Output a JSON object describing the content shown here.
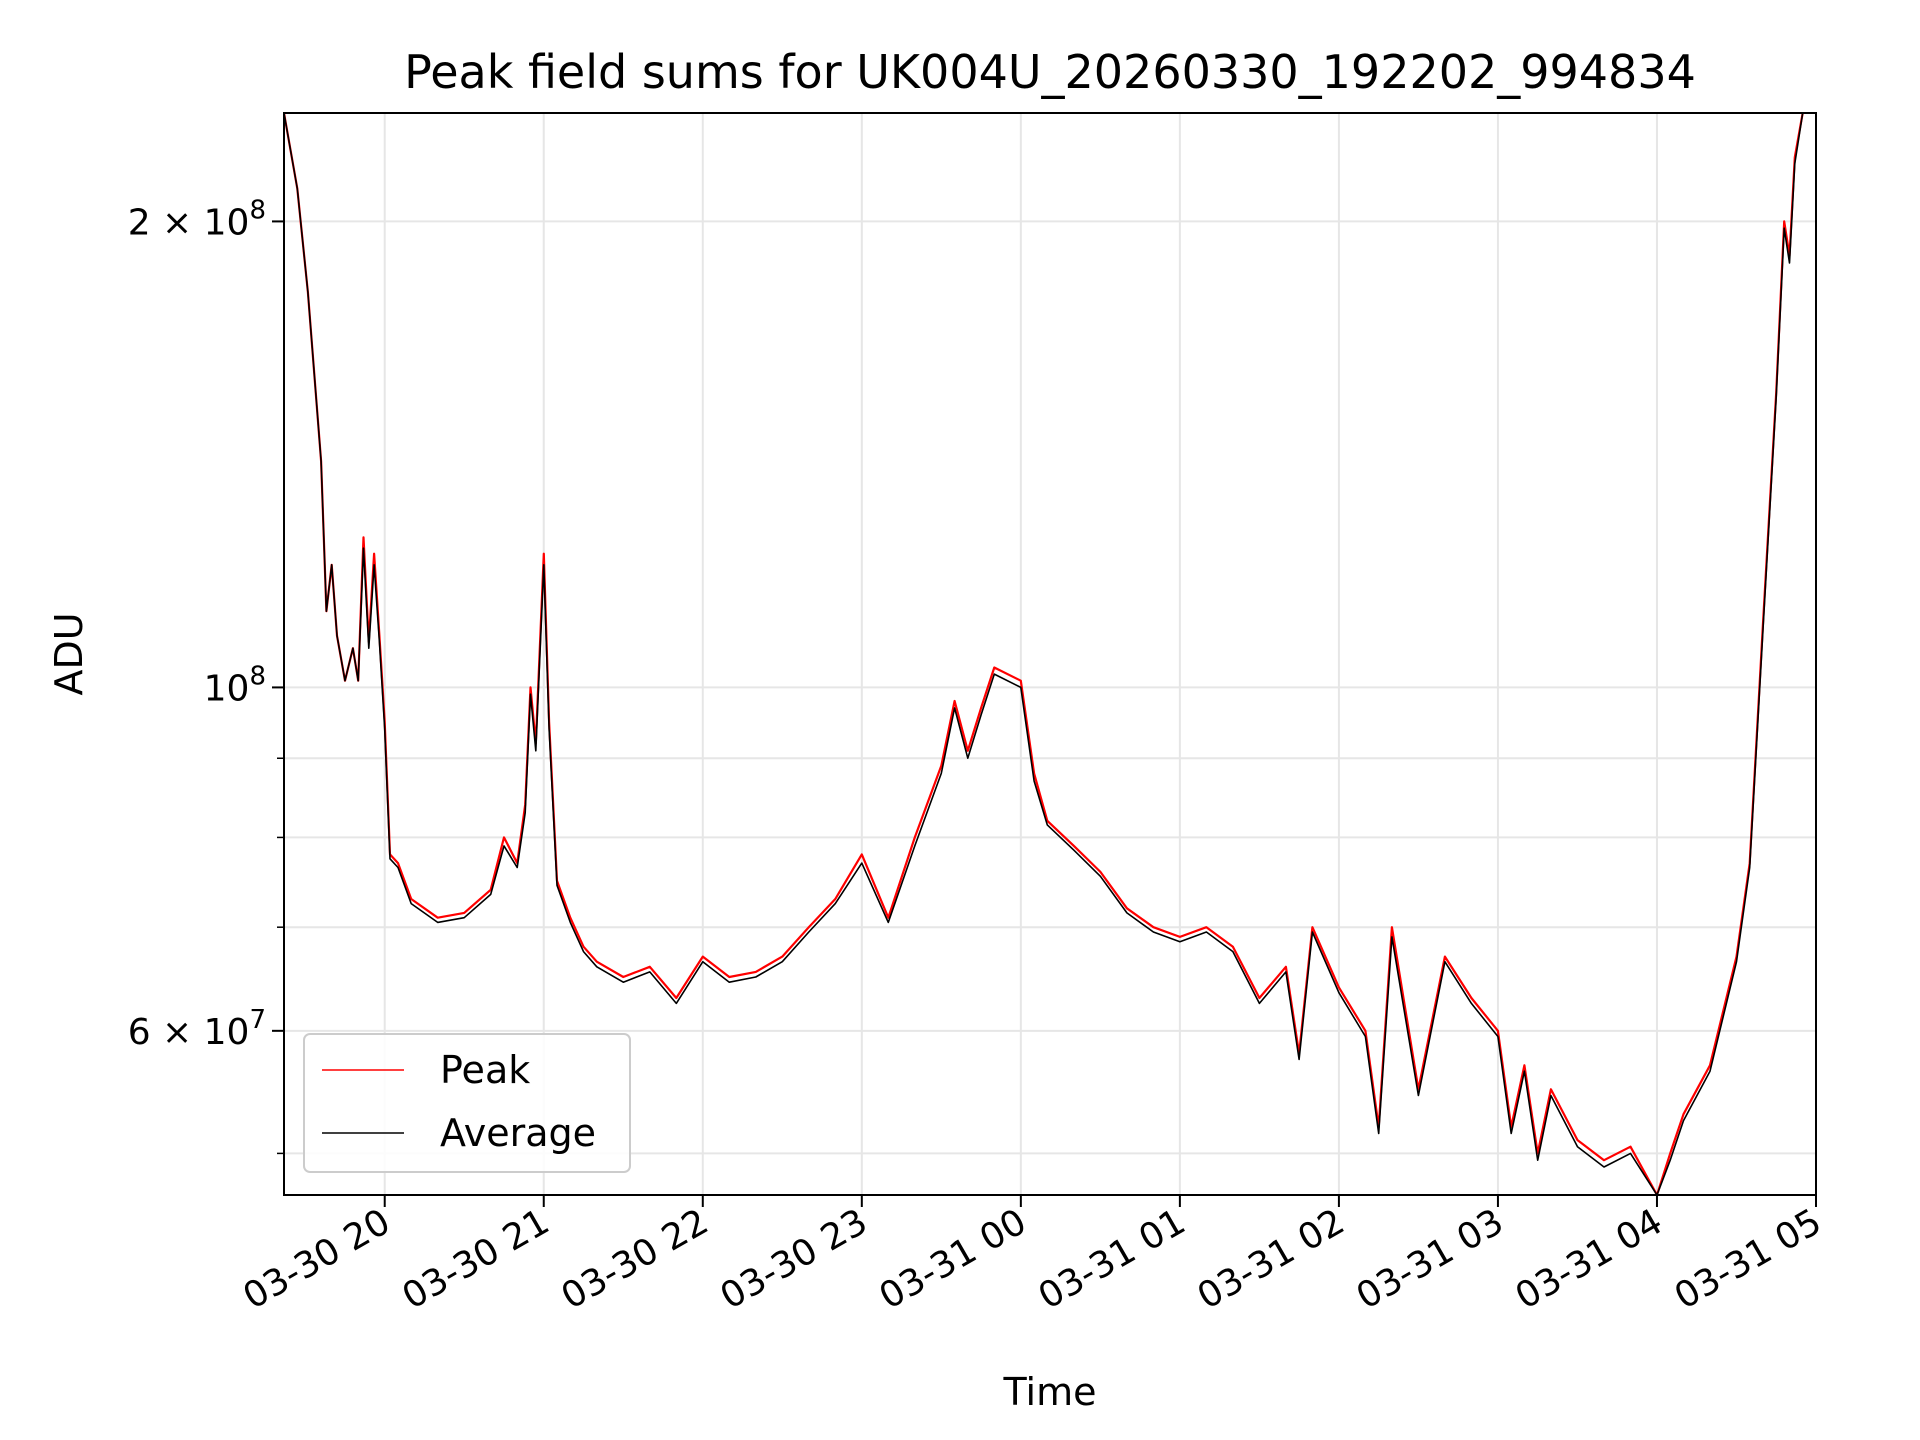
{
  "chart_data": {
    "type": "line",
    "title": "Peak field sums for UK004U_20260330_192202_994834",
    "xlabel": "Time",
    "ylabel": "ADU",
    "y_scale": "log",
    "ylim": [
      47000000,
      235000000
    ],
    "xlim": [
      "03-30 19:22",
      "03-31 05:00"
    ],
    "grid": true,
    "legend_position": "lower-left",
    "x_ticks": [
      "03-30 20",
      "03-30 21",
      "03-30 22",
      "03-30 23",
      "03-31 00",
      "03-31 01",
      "03-31 02",
      "03-31 03",
      "03-31 04",
      "03-31 05"
    ],
    "x_tick_rotation": 30,
    "y_ticks_major": [
      {
        "value": 60000000,
        "mantissa": "6 × 10",
        "exp": "7"
      },
      {
        "value": 100000000,
        "mantissa": "10",
        "exp": "8"
      },
      {
        "value": 200000000,
        "mantissa": "2 × 10",
        "exp": "8"
      }
    ],
    "y_ticks_minor": [
      50000000,
      70000000,
      80000000,
      90000000,
      300000000
    ],
    "series": [
      {
        "name": "Peak",
        "color": "#ff0000",
        "x": [
          "03-30 19:22",
          "03-30 19:27",
          "03-30 19:31",
          "03-30 19:36",
          "03-30 19:38",
          "03-30 19:40",
          "03-30 19:42",
          "03-30 19:45",
          "03-30 19:48",
          "03-30 19:50",
          "03-30 19:52",
          "03-30 19:54",
          "03-30 19:56",
          "03-30 19:58",
          "03-30 20:00",
          "03-30 20:02",
          "03-30 20:05",
          "03-30 20:10",
          "03-30 20:20",
          "03-30 20:30",
          "03-30 20:40",
          "03-30 20:45",
          "03-30 20:50",
          "03-30 20:53",
          "03-30 20:55",
          "03-30 20:57",
          "03-30 21:00",
          "03-30 21:02",
          "03-30 21:05",
          "03-30 21:10",
          "03-30 21:15",
          "03-30 21:20",
          "03-30 21:30",
          "03-30 21:40",
          "03-30 21:50",
          "03-30 22:00",
          "03-30 22:10",
          "03-30 22:20",
          "03-30 22:30",
          "03-30 22:40",
          "03-30 22:50",
          "03-30 23:00",
          "03-30 23:10",
          "03-30 23:20",
          "03-30 23:30",
          "03-30 23:35",
          "03-30 23:40",
          "03-30 23:45",
          "03-30 23:50",
          "03-31 00:00",
          "03-31 00:05",
          "03-31 00:10",
          "03-31 00:20",
          "03-31 00:30",
          "03-31 00:40",
          "03-31 00:50",
          "03-31 01:00",
          "03-31 01:10",
          "03-31 01:20",
          "03-31 01:30",
          "03-31 01:40",
          "03-31 01:45",
          "03-31 01:50",
          "03-31 02:00",
          "03-31 02:10",
          "03-31 02:15",
          "03-31 02:20",
          "03-31 02:30",
          "03-31 02:40",
          "03-31 02:50",
          "03-31 03:00",
          "03-31 03:05",
          "03-31 03:10",
          "03-31 03:15",
          "03-31 03:20",
          "03-31 03:30",
          "03-31 03:40",
          "03-31 03:50",
          "03-31 04:00",
          "03-31 04:05",
          "03-31 04:10",
          "03-31 04:20",
          "03-31 04:30",
          "03-31 04:35",
          "03-31 04:40",
          "03-31 04:45",
          "03-31 04:48",
          "03-31 04:50",
          "03-31 04:52",
          "03-31 04:55"
        ],
        "values": [
          235000000,
          210000000,
          180000000,
          140000000,
          112000000,
          120000000,
          108000000,
          101000000,
          106000000,
          101000000,
          125000000,
          107000000,
          122000000,
          108000000,
          95000000,
          78000000,
          77000000,
          73000000,
          71000000,
          71500000,
          74000000,
          80000000,
          77000000,
          84000000,
          100000000,
          92000000,
          122000000,
          95000000,
          75000000,
          71000000,
          68000000,
          66500000,
          65000000,
          66000000,
          63000000,
          67000000,
          65000000,
          65500000,
          67000000,
          70000000,
          73000000,
          78000000,
          71000000,
          80000000,
          89000000,
          98000000,
          91000000,
          97000000,
          103000000,
          101000000,
          88000000,
          82000000,
          79000000,
          76000000,
          72000000,
          70000000,
          69000000,
          70000000,
          68000000,
          63000000,
          66000000,
          58000000,
          70000000,
          64000000,
          60000000,
          52000000,
          70000000,
          55000000,
          67000000,
          63000000,
          60000000,
          52000000,
          57000000,
          50000000,
          55000000,
          51000000,
          49500000,
          50500000,
          47000000,
          50000000,
          53000000,
          57000000,
          67000000,
          77000000,
          110000000,
          155000000,
          200000000,
          190000000,
          220000000,
          235000000
        ]
      },
      {
        "name": "Average",
        "color": "#000000",
        "x": [
          "03-30 19:22",
          "03-30 19:27",
          "03-30 19:31",
          "03-30 19:36",
          "03-30 19:38",
          "03-30 19:40",
          "03-30 19:42",
          "03-30 19:45",
          "03-30 19:48",
          "03-30 19:50",
          "03-30 19:52",
          "03-30 19:54",
          "03-30 19:56",
          "03-30 19:58",
          "03-30 20:00",
          "03-30 20:02",
          "03-30 20:05",
          "03-30 20:10",
          "03-30 20:20",
          "03-30 20:30",
          "03-30 20:40",
          "03-30 20:45",
          "03-30 20:50",
          "03-30 20:53",
          "03-30 20:55",
          "03-30 20:57",
          "03-30 21:00",
          "03-30 21:02",
          "03-30 21:05",
          "03-30 21:10",
          "03-30 21:15",
          "03-30 21:20",
          "03-30 21:30",
          "03-30 21:40",
          "03-30 21:50",
          "03-30 22:00",
          "03-30 22:10",
          "03-30 22:20",
          "03-30 22:30",
          "03-30 22:40",
          "03-30 22:50",
          "03-30 23:00",
          "03-30 23:10",
          "03-30 23:20",
          "03-30 23:30",
          "03-30 23:35",
          "03-30 23:40",
          "03-30 23:45",
          "03-30 23:50",
          "03-31 00:00",
          "03-31 00:05",
          "03-31 00:10",
          "03-31 00:20",
          "03-31 00:30",
          "03-31 00:40",
          "03-31 00:50",
          "03-31 01:00",
          "03-31 01:10",
          "03-31 01:20",
          "03-31 01:30",
          "03-31 01:40",
          "03-31 01:45",
          "03-31 01:50",
          "03-31 02:00",
          "03-31 02:10",
          "03-31 02:15",
          "03-31 02:20",
          "03-31 02:30",
          "03-31 02:40",
          "03-31 02:50",
          "03-31 03:00",
          "03-31 03:05",
          "03-31 03:10",
          "03-31 03:15",
          "03-31 03:20",
          "03-31 03:30",
          "03-31 03:40",
          "03-31 03:50",
          "03-31 04:00",
          "03-31 04:05",
          "03-31 04:10",
          "03-31 04:20",
          "03-31 04:30",
          "03-31 04:35",
          "03-31 04:40",
          "03-31 04:45",
          "03-31 04:48",
          "03-31 04:50",
          "03-31 04:52",
          "03-31 04:55"
        ],
        "values": [
          235000000,
          210000000,
          180000000,
          140000000,
          112000000,
          120000000,
          108000000,
          101000000,
          106000000,
          101000000,
          123000000,
          106000000,
          120000000,
          107000000,
          94000000,
          77500000,
          76500000,
          72500000,
          70500000,
          71000000,
          73500000,
          79000000,
          76500000,
          83000000,
          99000000,
          91000000,
          120000000,
          94000000,
          74500000,
          70500000,
          67500000,
          66000000,
          64500000,
          65500000,
          62500000,
          66500000,
          64500000,
          65000000,
          66500000,
          69500000,
          72500000,
          77000000,
          70500000,
          79000000,
          88000000,
          97000000,
          90000000,
          96000000,
          102000000,
          100000000,
          87000000,
          81500000,
          78500000,
          75500000,
          71500000,
          69500000,
          68500000,
          69500000,
          67500000,
          62500000,
          65500000,
          57500000,
          69500000,
          63500000,
          59500000,
          51500000,
          69000000,
          54500000,
          66500000,
          62500000,
          59500000,
          51500000,
          56500000,
          49500000,
          54500000,
          50500000,
          49000000,
          50000000,
          47000000,
          49500000,
          52500000,
          56500000,
          66500000,
          76500000,
          109000000,
          154000000,
          198000000,
          188000000,
          218000000,
          235000000
        ]
      }
    ]
  }
}
